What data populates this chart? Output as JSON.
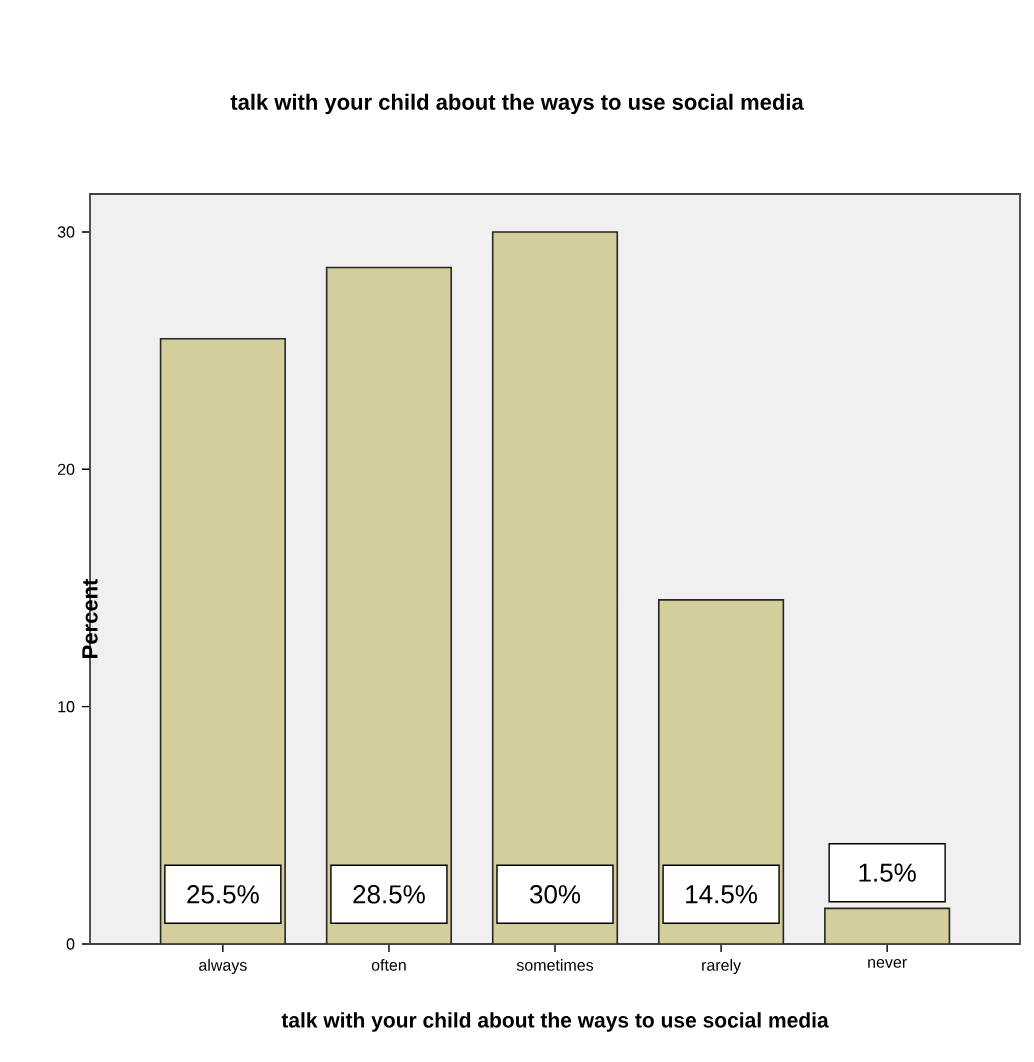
{
  "chart_data": {
    "type": "bar",
    "title": "talk with your child about the ways to use social media",
    "xlabel": "talk with your child about the ways to use social media",
    "ylabel": "Percent",
    "categories": [
      "always",
      "often",
      "sometimes",
      "rarely",
      "never"
    ],
    "values": [
      25.5,
      28.5,
      30,
      14.5,
      1.5
    ],
    "value_labels": [
      "25.5%",
      "28.5%",
      "30%",
      "14.5%",
      "1.5%"
    ],
    "color": "#d3ce9b",
    "ylim": [
      0,
      31.6
    ],
    "yticks": [
      0,
      10,
      20,
      30
    ]
  }
}
